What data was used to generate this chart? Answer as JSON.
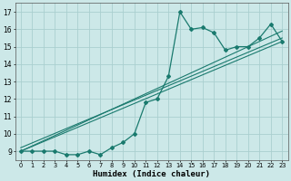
{
  "x": [
    0,
    1,
    2,
    3,
    4,
    5,
    6,
    7,
    8,
    9,
    10,
    11,
    12,
    13,
    14,
    15,
    16,
    17,
    18,
    19,
    20,
    21,
    22,
    23
  ],
  "y": [
    9,
    9,
    9,
    9,
    8.8,
    8.8,
    9,
    8.8,
    9.2,
    9.5,
    10.0,
    11.8,
    12.0,
    13.3,
    17.0,
    16.0,
    16.1,
    15.8,
    14.8,
    15.0,
    15.0,
    15.5,
    16.3,
    15.3
  ],
  "line_color": "#1a7a6e",
  "bg_color": "#cce8e8",
  "grid_color": "#aacfcf",
  "xlabel": "Humidex (Indice chaleur)",
  "ylim": [
    8.5,
    17.5
  ],
  "xlim": [
    -0.5,
    23.5
  ],
  "yticks": [
    9,
    10,
    11,
    12,
    13,
    14,
    15,
    16,
    17
  ],
  "xticks": [
    0,
    1,
    2,
    3,
    4,
    5,
    6,
    7,
    8,
    9,
    10,
    11,
    12,
    13,
    14,
    15,
    16,
    17,
    18,
    19,
    20,
    21,
    22,
    23
  ],
  "trend_lines": [
    {
      "x0": 0,
      "y0": 9.0,
      "x1": 23,
      "y1": 15.3
    },
    {
      "x0": 0,
      "y0": 9.0,
      "x1": 23,
      "y1": 15.9
    },
    {
      "x0": 0,
      "y0": 9.2,
      "x1": 23,
      "y1": 15.5
    }
  ]
}
